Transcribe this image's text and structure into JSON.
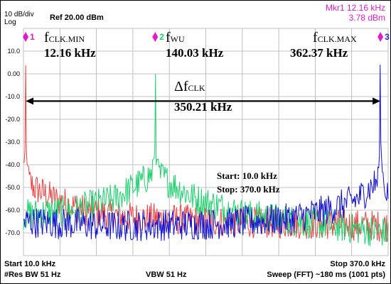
{
  "header": {
    "scale": "10 dB/div",
    "mode": "Log",
    "ref_level": "Ref 20.00 dBm",
    "marker_freq": "Mkr1 12.16 kHz",
    "marker_level": "3.78 dBm"
  },
  "footer": {
    "start": "Start 10.0 kHz",
    "stop": "Stop 370.0 kHz",
    "res_bw": "#Res BW 51 Hz",
    "vbw": "VBW 51 Hz",
    "sweep": "Sweep (FFT)  ~180 ms (1001 pts)"
  },
  "colors": {
    "grid": "#b0b0b0",
    "trace_red": "#f04040",
    "trace_green": "#20d070",
    "trace_blue": "#1010d0",
    "marker": "#e01ec8",
    "marker3": "#2020e0"
  },
  "chart_data": {
    "type": "line",
    "x_range_khz": [
      10.0,
      370.0
    ],
    "ylim": [
      -80,
      20
    ],
    "ytick_labels": [
      "10.0",
      "0.00",
      "-10.0",
      "-20.0",
      "-30.0",
      "-40.0",
      "-50.0",
      "-60.0",
      "-70.0"
    ],
    "ytick_values": [
      10,
      0,
      -10,
      -20,
      -30,
      -40,
      -50,
      -60,
      -70
    ],
    "grid": true,
    "series": [
      {
        "color": "#f04040",
        "peak": {
          "x": 12.16,
          "y": 3.78
        },
        "floor": [
          {
            "x": 12,
            "y": -45
          },
          {
            "x": 20,
            "y": -50
          },
          {
            "x": 40,
            "y": -55
          },
          {
            "x": 70,
            "y": -60
          },
          {
            "x": 110,
            "y": -63
          },
          {
            "x": 200,
            "y": -65
          },
          {
            "x": 300,
            "y": -66
          },
          {
            "x": 370,
            "y": -67
          }
        ]
      },
      {
        "color": "#20d070",
        "peak": {
          "x": 140.03,
          "y": 0
        },
        "floor": [
          {
            "x": 10,
            "y": -62
          },
          {
            "x": 60,
            "y": -60
          },
          {
            "x": 100,
            "y": -55
          },
          {
            "x": 125,
            "y": -48
          },
          {
            "x": 140,
            "y": -43
          },
          {
            "x": 155,
            "y": -48
          },
          {
            "x": 180,
            "y": -55
          },
          {
            "x": 230,
            "y": -62
          },
          {
            "x": 300,
            "y": -66
          },
          {
            "x": 370,
            "y": -70
          }
        ]
      },
      {
        "color": "#1010d0",
        "peak": {
          "x": 362.37,
          "y": 4
        },
        "floor": [
          {
            "x": 10,
            "y": -65
          },
          {
            "x": 100,
            "y": -67
          },
          {
            "x": 200,
            "y": -66
          },
          {
            "x": 270,
            "y": -64
          },
          {
            "x": 310,
            "y": -60
          },
          {
            "x": 340,
            "y": -55
          },
          {
            "x": 360,
            "y": -47
          },
          {
            "x": 370,
            "y": -52
          }
        ]
      }
    ],
    "markers": [
      {
        "id": "1",
        "x": 12.16,
        "y": 3.78,
        "color": "#e01ec8",
        "num_color": "#e01ec8"
      },
      {
        "id": "2",
        "x": 140.03,
        "y": 0,
        "color": "#e01ec8",
        "num_color": "#20d070"
      },
      {
        "id": "3",
        "x": 362.37,
        "y": 4,
        "color": "#e01ec8",
        "num_color": "#2020e0"
      }
    ],
    "annotations": {
      "fmin_label": "f",
      "fmin_sub": "CLK.MIN",
      "fmin_value": "12.16 kHz",
      "fwu_label": "f",
      "fwu_sub": "WU",
      "fwu_value": "140.03 kHz",
      "fmax_label": "f",
      "fmax_sub": "CLK.MAX",
      "fmax_value": "362.37 kHz",
      "delta_label": "Δf",
      "delta_sub": "CLK",
      "delta_value": "350.21 kHz",
      "delta_y": -12,
      "start_note": "Start: 10.0 kHz",
      "stop_note": "Stop: 370.0 kHz"
    }
  }
}
